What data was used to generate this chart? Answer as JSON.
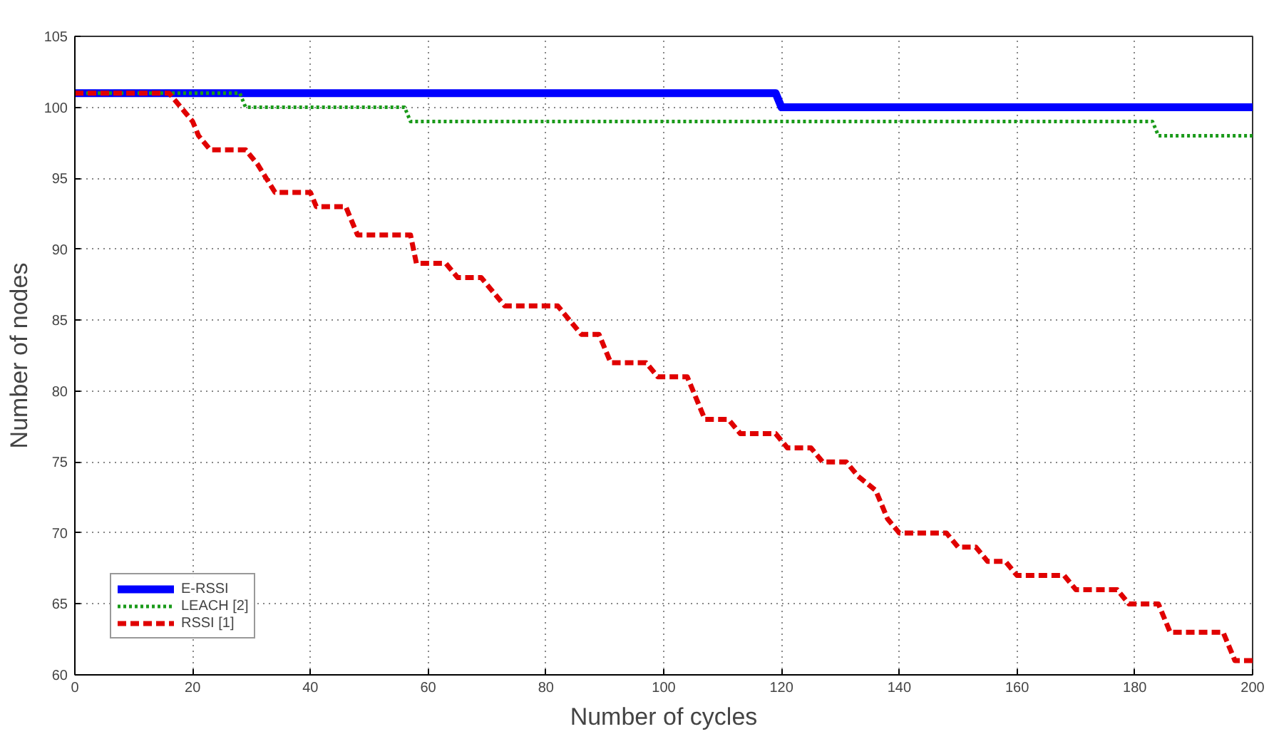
{
  "chart_data": {
    "type": "line",
    "xlabel": "Number of cycles",
    "ylabel": "Number of nodes",
    "xlim": [
      0,
      200
    ],
    "ylim": [
      60,
      105
    ],
    "xticks": [
      0,
      20,
      40,
      60,
      80,
      100,
      120,
      140,
      160,
      180,
      200
    ],
    "yticks": [
      60,
      65,
      70,
      75,
      80,
      85,
      90,
      95,
      100,
      105
    ],
    "grid": true,
    "legend": "bottom left",
    "marker": "none",
    "series": [
      {
        "name": "E-RSSI",
        "color": "#0000ff",
        "line_style": "solid",
        "x": [
          0,
          119,
          120,
          200
        ],
        "values": [
          101,
          101,
          100,
          100
        ]
      },
      {
        "name": "LEACH [2]",
        "color": "#1a9a1a",
        "line_style": "dotted",
        "x": [
          0,
          28,
          29,
          56,
          57,
          183,
          184,
          200
        ],
        "values": [
          101,
          101,
          100,
          100,
          99,
          99,
          98,
          98
        ]
      },
      {
        "name": "RSSI [1]",
        "color": "#e00000",
        "line_style": "dashed",
        "x": [
          0,
          16,
          18,
          20,
          21,
          23,
          29,
          31,
          34,
          40,
          41,
          46,
          48,
          57,
          58,
          63,
          65,
          69,
          71,
          73,
          82,
          84,
          86,
          89,
          91,
          97,
          99,
          104,
          106,
          107,
          111,
          113,
          119,
          121,
          125,
          127,
          131,
          133,
          136,
          138,
          140,
          148,
          150,
          153,
          155,
          158,
          160,
          168,
          170,
          177,
          179,
          184,
          186,
          195,
          197,
          200
        ],
        "values": [
          101,
          101,
          100,
          99,
          98,
          97,
          97,
          96,
          94,
          94,
          93,
          93,
          91,
          91,
          89,
          89,
          88,
          88,
          87,
          86,
          86,
          85,
          84,
          84,
          82,
          82,
          81,
          81,
          79,
          78,
          78,
          77,
          77,
          76,
          76,
          75,
          75,
          74,
          73,
          71,
          70,
          70,
          69,
          69,
          68,
          68,
          67,
          67,
          66,
          66,
          65,
          65,
          63,
          63,
          61,
          61
        ]
      }
    ]
  }
}
